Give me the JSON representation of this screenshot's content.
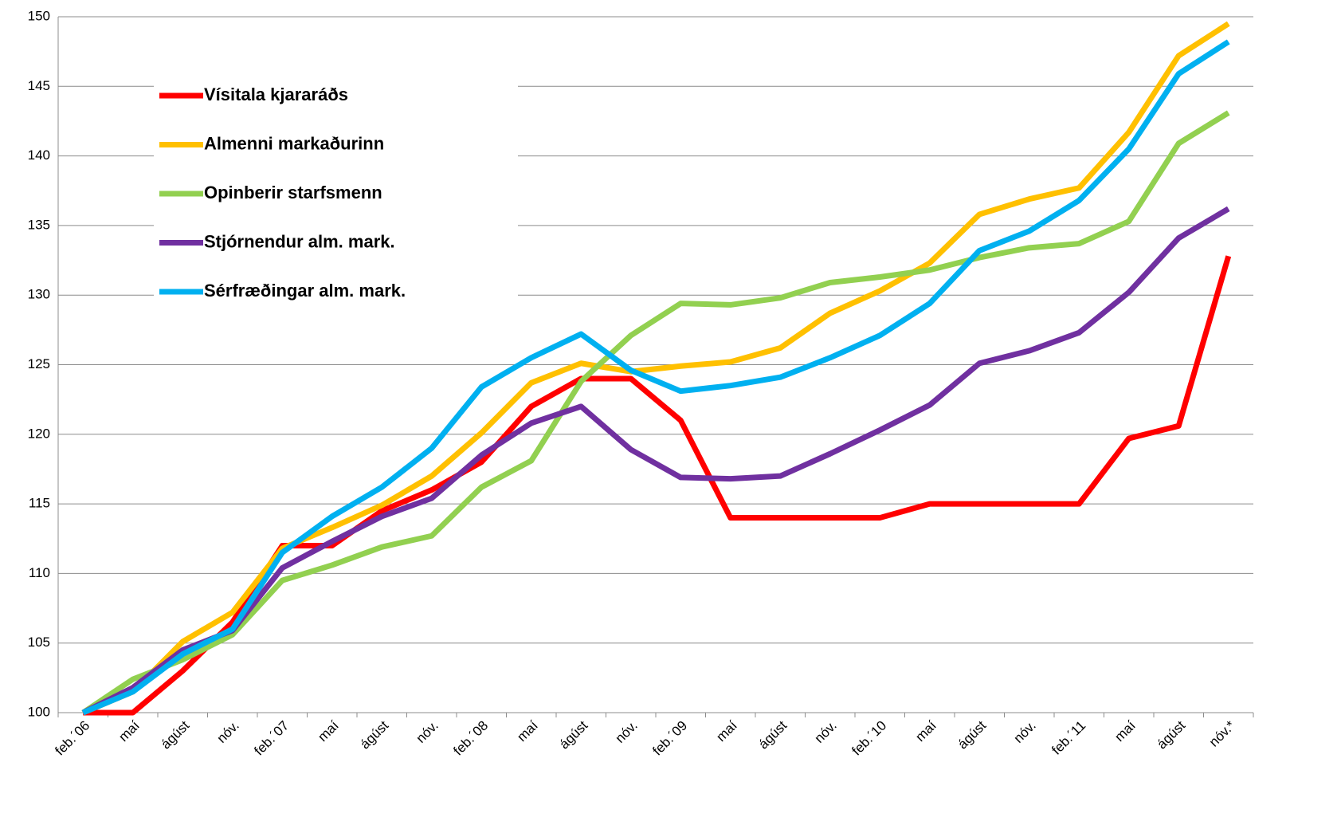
{
  "chart_data": {
    "type": "line",
    "categories": [
      "feb.´06",
      "maí",
      "ágúst",
      "nóv.",
      "feb.´07",
      "maí",
      "ágúst",
      "nóv.",
      "feb.´08",
      "maí",
      "ágúst",
      "nóv.",
      "feb.´09",
      "maí",
      "ágúst",
      "nóv.",
      "feb.´10",
      "maí",
      "ágúst",
      "nóv.",
      "feb.´11",
      "maí",
      "ágúst",
      "nóv.*"
    ],
    "series": [
      {
        "name": "Vísitala kjararáðs",
        "color": "#ff0000",
        "values": [
          100,
          100,
          103,
          106.5,
          112,
          112,
          114.5,
          116,
          118,
          122,
          124,
          124,
          121,
          114,
          114,
          114,
          114,
          115,
          115,
          115,
          115,
          119.7,
          120.6,
          132.8
        ]
      },
      {
        "name": "Almenni markaðurinn",
        "color": "#ffc000",
        "values": [
          100,
          101.5,
          105.1,
          107.2,
          111.8,
          113.3,
          114.9,
          117,
          120.1,
          123.7,
          125.1,
          124.5,
          124.9,
          125.2,
          126.2,
          128.7,
          130.3,
          132.3,
          135.8,
          136.9,
          137.7,
          141.7,
          147.2,
          149.5
        ]
      },
      {
        "name": "Opinberir starfsmenn",
        "color": "#92d050",
        "values": [
          100,
          102.4,
          103.8,
          105.6,
          109.5,
          110.6,
          111.9,
          112.7,
          116.2,
          118.1,
          123.8,
          127.1,
          129.4,
          129.3,
          129.8,
          130.9,
          131.3,
          131.8,
          132.7,
          133.4,
          133.7,
          135.3,
          140.9,
          143.1
        ]
      },
      {
        "name": "Stjórnendur alm. mark.",
        "color": "#7030a0",
        "values": [
          100,
          101.8,
          104.5,
          105.9,
          110.4,
          112.3,
          114.1,
          115.4,
          118.5,
          120.8,
          122,
          118.9,
          116.9,
          116.8,
          117,
          118.6,
          120.3,
          122.1,
          125.1,
          126,
          127.3,
          130.2,
          134.1,
          136.2
        ]
      },
      {
        "name": "Sérfræðingar alm. mark.",
        "color": "#00b0f0",
        "values": [
          100,
          101.5,
          104.2,
          106,
          111.5,
          114.1,
          116.2,
          119,
          123.4,
          125.5,
          127.2,
          124.6,
          123.1,
          123.5,
          124.1,
          125.5,
          127.1,
          129.4,
          133.2,
          134.6,
          136.8,
          140.5,
          145.9,
          148.2
        ]
      }
    ],
    "ylim": [
      100,
      150
    ],
    "yticks": [
      100,
      105,
      110,
      115,
      120,
      125,
      130,
      135,
      140,
      145,
      150
    ],
    "grid": true,
    "legend": "upper left"
  }
}
